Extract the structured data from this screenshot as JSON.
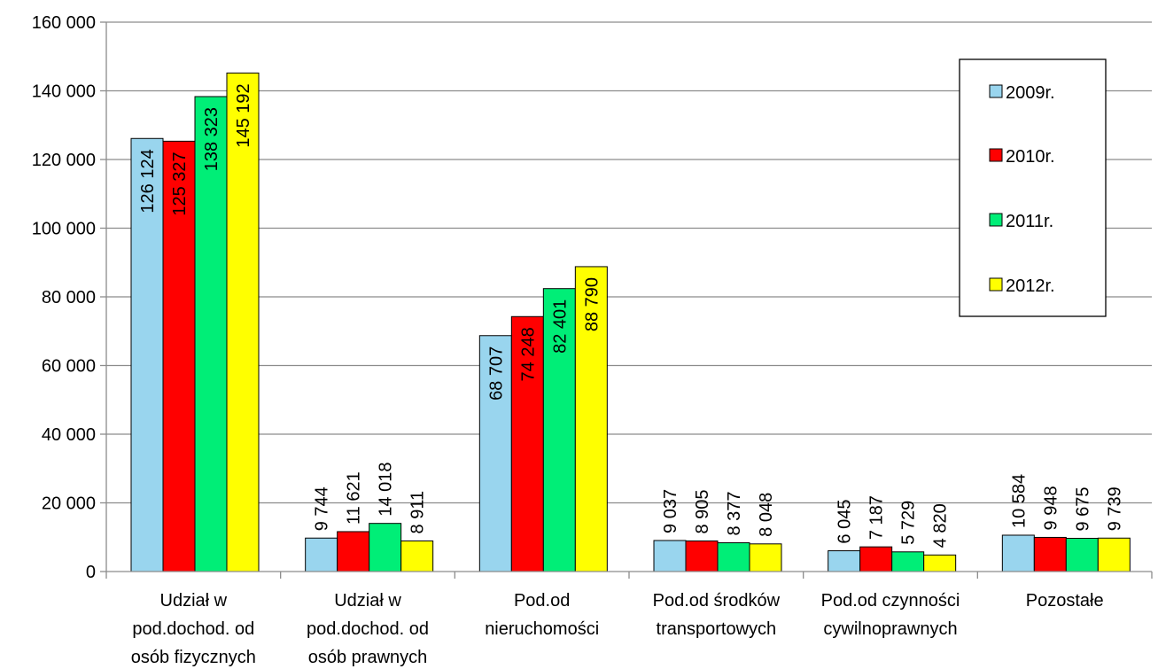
{
  "chart_data": {
    "type": "bar",
    "title": "",
    "xlabel": "",
    "ylabel": "",
    "ylim": [
      0,
      160000
    ],
    "yticks": [
      "0",
      "20 000",
      "40 000",
      "60 000",
      "80 000",
      "100 000",
      "120 000",
      "140 000",
      "160 000"
    ],
    "grid": true,
    "legend_position": "top-right",
    "categories": [
      [
        "Udział w",
        "pod.dochod. od",
        "osób fizycznych"
      ],
      [
        "Udział w",
        "pod.dochod. od",
        "osób prawnych"
      ],
      [
        "Pod.od",
        "nieruchomości"
      ],
      [
        "Pod.od środków",
        "transportowych"
      ],
      [
        "Pod.od czynności",
        "cywilnoprawnych"
      ],
      [
        "Pozostałe"
      ]
    ],
    "series": [
      {
        "name": "2009r.",
        "color": "#99d5ee",
        "values": [
          126124,
          9744,
          68707,
          9037,
          6045,
          10584
        ],
        "labels": [
          "126 124",
          "9 744",
          "68 707",
          "9 037",
          "6 045",
          "10 584"
        ]
      },
      {
        "name": "2010r.",
        "color": "#ff0000",
        "values": [
          125327,
          11621,
          74248,
          8905,
          7187,
          9948
        ],
        "labels": [
          "125 327",
          "11 621",
          "74 248",
          "8 905",
          "7 187",
          "9 948"
        ]
      },
      {
        "name": "2011r.",
        "color": "#00ee77",
        "values": [
          138323,
          14018,
          82401,
          8377,
          5729,
          9675
        ],
        "labels": [
          "138 323",
          "14 018",
          "82 401",
          "8 377",
          "5 729",
          "9 675"
        ]
      },
      {
        "name": "2012r.",
        "color": "#ffff00",
        "values": [
          145192,
          8911,
          88790,
          8048,
          4820,
          9739
        ],
        "labels": [
          "145 192",
          "8 911",
          "88 790",
          "8 048",
          "4 820",
          "9 739"
        ]
      }
    ]
  }
}
